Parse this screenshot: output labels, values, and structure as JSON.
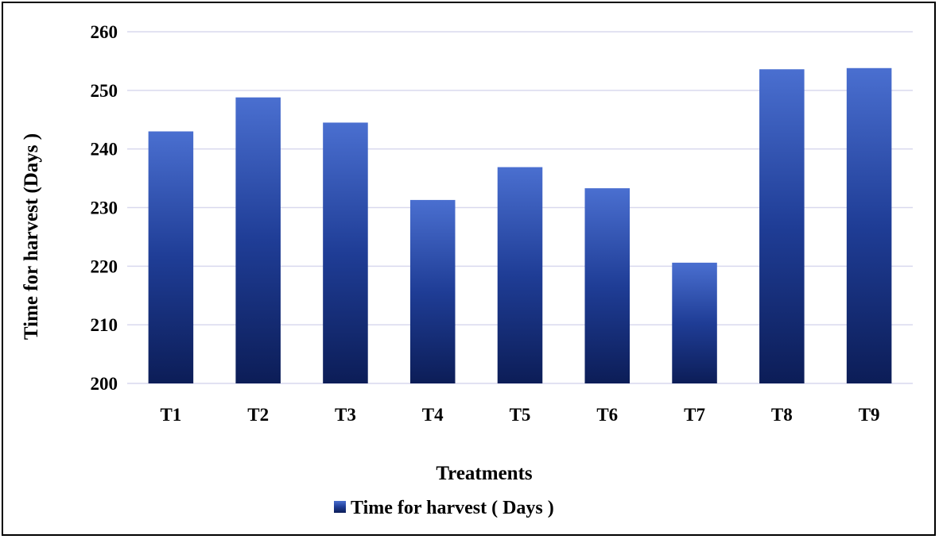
{
  "chart_data": {
    "type": "bar",
    "categories": [
      "T1",
      "T2",
      "T3",
      "T4",
      "T5",
      "T6",
      "T7",
      "T8",
      "T9"
    ],
    "series": [
      {
        "name": "Time for harvest ( Days )",
        "values": [
          243,
          248.8,
          244.5,
          231.3,
          236.9,
          233.3,
          220.6,
          253.6,
          253.8
        ]
      }
    ],
    "xlabel": "Treatments",
    "ylabel": "Time for harvest (Days )",
    "ylim": [
      200,
      260
    ],
    "yticks": [
      200,
      210,
      220,
      230,
      240,
      250,
      260
    ],
    "grid": true,
    "legend_position": "bottom",
    "colors": {
      "bar_top": "#4a6fd0",
      "bar_mid": "#1f3d96",
      "bar_bottom": "#0c1d57",
      "grid": "#d9d9ee"
    }
  }
}
